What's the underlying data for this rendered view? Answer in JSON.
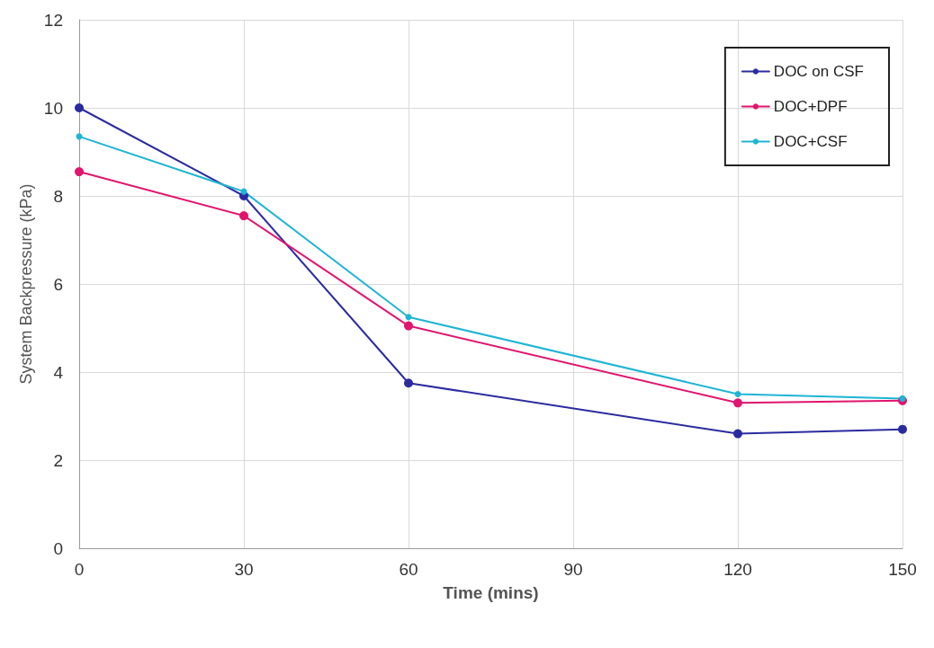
{
  "chart_data": {
    "type": "line",
    "xlabel": "Time (mins)",
    "ylabel": "System Backpressure (kPa)",
    "x": [
      0,
      30,
      60,
      120,
      150
    ],
    "series": [
      {
        "name": "DOC on CSF",
        "color": "#2b2ba0",
        "values": [
          10.0,
          8.0,
          3.75,
          2.6,
          2.7
        ]
      },
      {
        "name": "DOC+DPF",
        "color": "#e0156e",
        "values": [
          8.55,
          7.55,
          5.05,
          3.3,
          3.35
        ]
      },
      {
        "name": "DOC+CSF",
        "color": "#1fb5d4",
        "values": [
          9.35,
          8.1,
          5.25,
          3.5,
          3.4
        ]
      }
    ],
    "xlim": [
      0,
      150
    ],
    "xticks": [
      0,
      30,
      60,
      90,
      120,
      150
    ],
    "ylim": [
      0,
      12
    ],
    "yticks": [
      0,
      2,
      4,
      6,
      8,
      10,
      12
    ],
    "grid": true,
    "legend": "top right",
    "marker": "circle",
    "line_style": "solid"
  }
}
